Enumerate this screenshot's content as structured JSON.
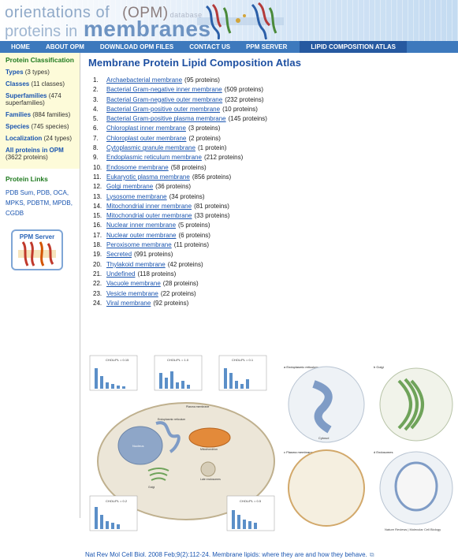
{
  "header": {
    "logo_line1": "orientations of",
    "logo_opm": "(OPM)",
    "logo_database": "database",
    "logo_line2_prefix": "proteins in",
    "logo_line2_big": "membranes"
  },
  "nav": {
    "items": [
      {
        "label": "HOME"
      },
      {
        "label": "ABOUT OPM"
      },
      {
        "label": "DOWNLOAD OPM FILES"
      },
      {
        "label": "CONTACT US"
      },
      {
        "label": "PPM SERVER"
      },
      {
        "label": "LIPID COMPOSITION ATLAS"
      }
    ]
  },
  "sidebar": {
    "classification_heading": "Protein Classification",
    "entries": [
      {
        "link": "Types",
        "rest": " (3 types)"
      },
      {
        "link": "Classes",
        "rest": " (11 classes)"
      },
      {
        "link": "Superfamilies",
        "rest": " (474 superfamilies)"
      },
      {
        "link": "Families",
        "rest": " (884 families)"
      },
      {
        "link": "Species",
        "rest": " (745 species)"
      },
      {
        "link": "Localization",
        "rest": " (24 types)"
      },
      {
        "link": "All proteins in OPM",
        "rest": " (3622 proteins)"
      }
    ],
    "links_heading": "Protein Links",
    "links": [
      "PDB Sum",
      "PDB",
      "OCA",
      "MPKS",
      "PDBTM",
      "MPDB",
      "CGDB"
    ],
    "ppm_label": "PPM Server"
  },
  "main": {
    "title": "Membrane Protein Lipid Composition Atlas",
    "items": [
      {
        "num": "1.",
        "name": "Archaebacterial membrane",
        "count": "(95 proteins)"
      },
      {
        "num": "2.",
        "name": "Bacterial Gram-negative inner membrane",
        "count": "(509 proteins)"
      },
      {
        "num": "3.",
        "name": "Bacterial Gram-negative outer membrane",
        "count": "(232 proteins)"
      },
      {
        "num": "4.",
        "name": "Bacterial Gram-positive outer membrane",
        "count": "(10 proteins)"
      },
      {
        "num": "5.",
        "name": "Bacterial Gram-positive plasma membrane",
        "count": "(145 proteins)"
      },
      {
        "num": "6.",
        "name": "Chloroplast inner membrane",
        "count": "(3 proteins)"
      },
      {
        "num": "7.",
        "name": "Chloroplast outer membrane",
        "count": "(2 proteins)"
      },
      {
        "num": "8.",
        "name": "Cytoplasmic granule membrane",
        "count": "(1 protein)"
      },
      {
        "num": "9.",
        "name": "Endoplasmic reticulum membrane",
        "count": "(212 proteins)"
      },
      {
        "num": "10.",
        "name": "Endosome membrane",
        "count": "(58 proteins)"
      },
      {
        "num": "11.",
        "name": "Eukaryotic plasma membrane",
        "count": "(856 proteins)"
      },
      {
        "num": "12.",
        "name": "Golgi membrane",
        "count": "(36 proteins)"
      },
      {
        "num": "13.",
        "name": "Lysosome membrane",
        "count": "(34 proteins)"
      },
      {
        "num": "14.",
        "name": "Mitochondrial inner membrane",
        "count": "(81 proteins)"
      },
      {
        "num": "15.",
        "name": "Mitochondrial outer membrane",
        "count": "(33 proteins)"
      },
      {
        "num": "16.",
        "name": "Nuclear inner membrane",
        "count": "(5 proteins)"
      },
      {
        "num": "17.",
        "name": "Nuclear outer membrane",
        "count": "(6 proteins)"
      },
      {
        "num": "18.",
        "name": "Peroxisome membrane",
        "count": "(11 proteins)"
      },
      {
        "num": "19.",
        "name": "Secreted",
        "count": "(991 proteins)"
      },
      {
        "num": "20.",
        "name": "Thylakoid membrane",
        "count": "(42 proteins)"
      },
      {
        "num": "21.",
        "name": "Undefined",
        "count": "(118 proteins)"
      },
      {
        "num": "22.",
        "name": "Vacuole membrane",
        "count": "(28 proteins)"
      },
      {
        "num": "23.",
        "name": "Vesicle membrane",
        "count": "(22 proteins)"
      },
      {
        "num": "24.",
        "name": "Viral membrane",
        "count": "(92 proteins)"
      }
    ],
    "figure": {
      "panel_a": "a Endoplasmic reticulum",
      "panel_b": "b Golgi",
      "panel_c": "c Plasma membrane",
      "panel_d": "d Endosomes",
      "cytosol": "Cytosol",
      "nucleus": "Nucleus",
      "mitochondrion": "Mitochondrion",
      "late_endosomes": "Late endosomes",
      "er_label": "Endoplasmic reticulum",
      "plasma_membrane": "Plasma membrane",
      "golgi": "Golgi",
      "journal_credit": "Nature Reviews | Molecular Cell Biology",
      "ratio_er": "CHOL/PL = 0.15",
      "ratio_pm": "CHOL/PL = 1.0",
      "ratio_mito": "CHOL/PL = 0.1",
      "ratio_golgi": "CHOL/PL = 0.2",
      "ratio_le": "CHOL/PL = 0.5"
    },
    "citation": "Nat Rev Mol Cell Biol. 2008 Feb;9(2):112-24. Membrane lipids: where they are and how they behave."
  }
}
